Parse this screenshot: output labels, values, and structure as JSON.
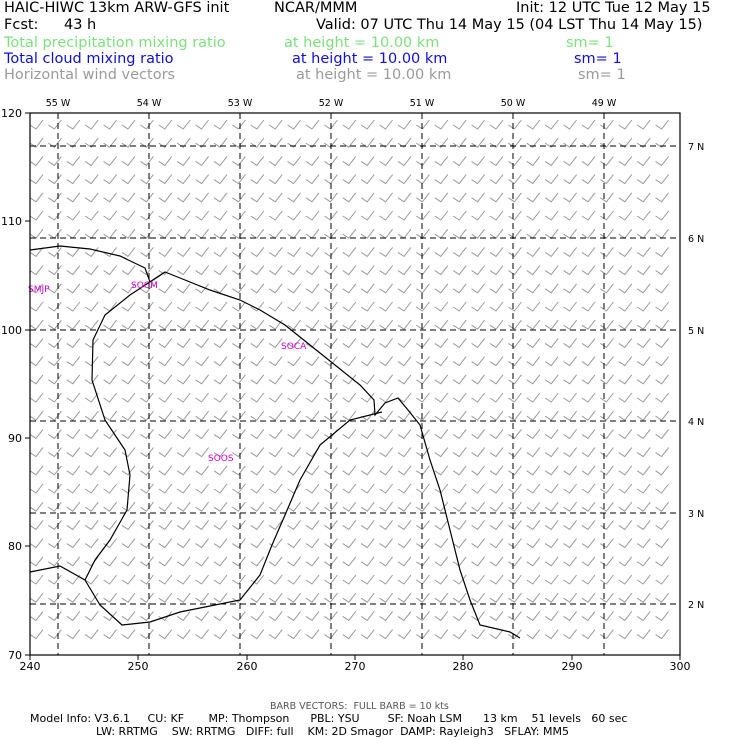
{
  "header": {
    "title": "HAIC-HIWC 13km ARW-GFS init",
    "org": "NCAR/MMM",
    "init": "Init: 12 UTC Tue 12 May 15",
    "fcst_label": "Fcst:",
    "fcst_value": "43 h",
    "valid": "Valid: 07 UTC Thu 14 May 15 (04 LST Thu 14 May 15)",
    "fields": [
      {
        "name": "Total precipitation mixing ratio",
        "height": "at height = 10.00 km",
        "sm": "sm= 1",
        "color": "#7fe07f"
      },
      {
        "name": "Total cloud mixing ratio",
        "height": "at height = 10.00 km",
        "sm": "sm= 1",
        "color": "#1010d0"
      },
      {
        "name": "Horizontal wind vectors",
        "height": "at height = 10.00 km",
        "sm": "sm= 1",
        "color": "#9a9a9a"
      }
    ]
  },
  "map": {
    "x_ticks": [
      "240",
      "250",
      "260",
      "270",
      "280",
      "290",
      "300"
    ],
    "y_ticks": [
      "70",
      "80",
      "90",
      "100",
      "110",
      "120"
    ],
    "lon_labels": [
      "55 W",
      "54 W",
      "53 W",
      "52 W",
      "51 W",
      "50 W",
      "49 W"
    ],
    "lat_labels": [
      "7 N",
      "6 N",
      "5 N",
      "4 N",
      "3 N",
      "2 N"
    ],
    "stations": [
      "SMJP",
      "SOCM",
      "SOCA",
      "SOOS"
    ],
    "station_color": "#d000d0"
  },
  "footer": {
    "barb_note": "BARB VECTORS:  FULL BARB = 10 kts",
    "model_line1": "Model Info: V3.6.1     CU: KF       MP: Thompson      PBL: YSU        SF: Noah LSM      13 km    51 levels   60 sec",
    "model_line2": "LW: RRTMG    SW: RRTMG   DIFF: full    KM: 2D Smagor  DAMP: Rayleigh3   SFLAY: MM5"
  }
}
